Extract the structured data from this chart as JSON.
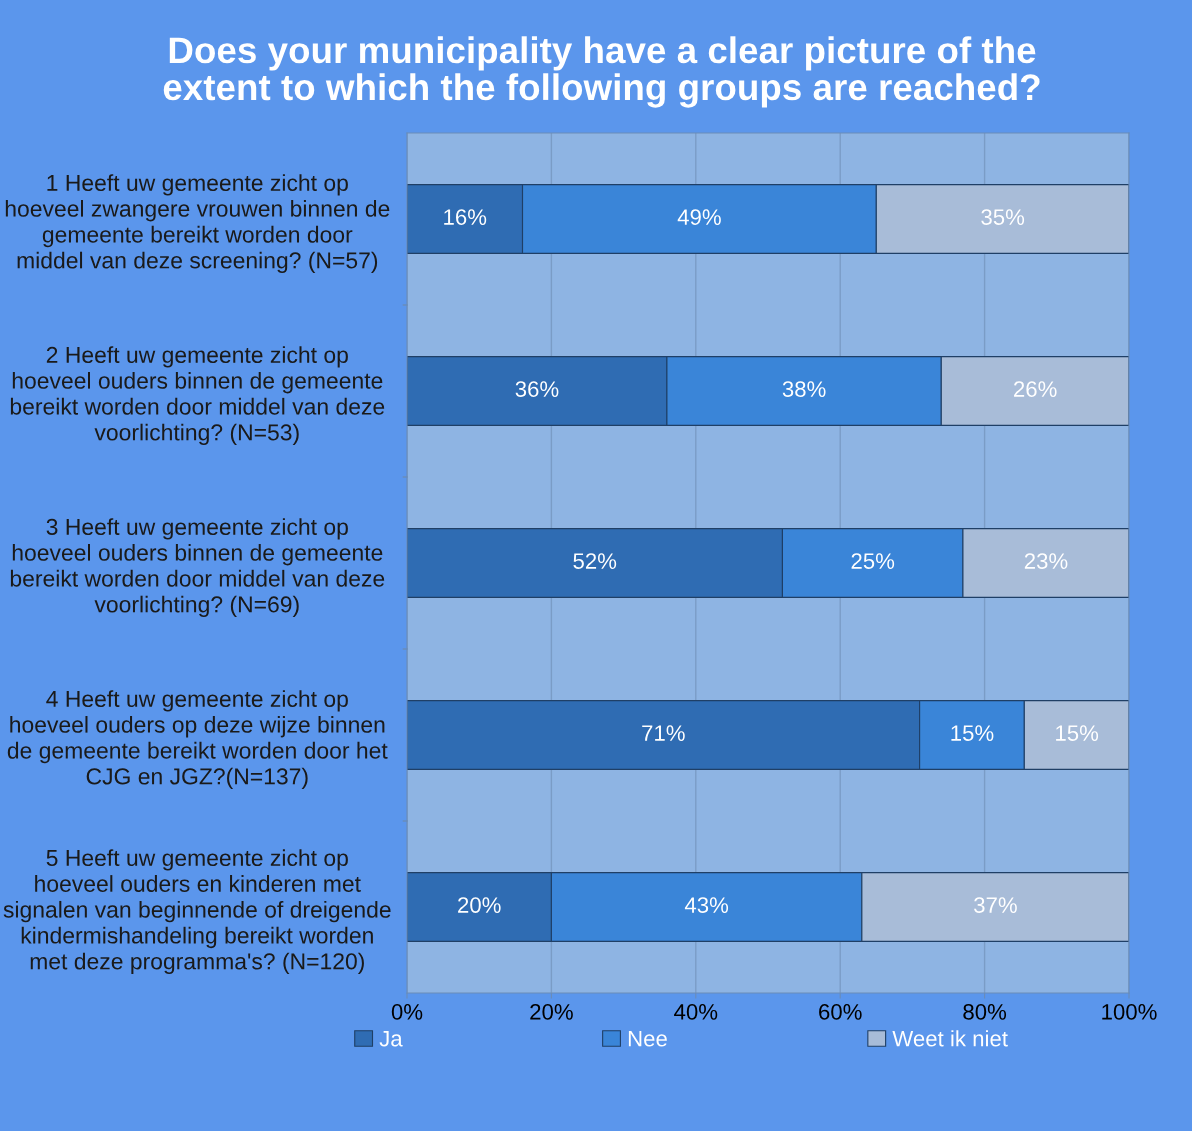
{
  "chart_data": {
    "type": "bar",
    "orientation": "horizontal",
    "stacked": true,
    "title": "Does your municipality have a clear picture of the\nextent to which the following groups are reached?",
    "categories": [
      "1 Heeft uw gemeente zicht op\nhoeveel zwangere vrouwen binnen de\ngemeente bereikt worden door\nmiddel van deze screening? (N=57)",
      "2 Heeft uw gemeente zicht op\nhoeveel ouders binnen de gemeente\nbereikt worden door middel van deze\nvoorlichting? (N=53)",
      "3 Heeft uw gemeente zicht op\nhoeveel ouders binnen de gemeente\nbereikt worden door middel van deze\nvoorlichting? (N=69)",
      "4 Heeft uw gemeente zicht op\nhoeveel ouders op deze wijze binnen\nde gemeente bereikt worden door het\nCJG en JGZ?(N=137)",
      "5 Heeft uw gemeente zicht op\nhoeveel ouders en kinderen met\nsignalen van beginnende of dreigende\nkindermishandeling bereikt worden\nmet deze programma's? (N=120)"
    ],
    "series": [
      {
        "name": "Ja",
        "color": "#2f6cb3",
        "values": [
          16,
          36,
          52,
          71,
          20
        ],
        "value_labels": [
          "16%",
          "36%",
          "52%",
          "71%",
          "20%"
        ]
      },
      {
        "name": "Nee",
        "color": "#3a85d8",
        "values": [
          49,
          38,
          25,
          14.5,
          43
        ],
        "value_labels": [
          "49%",
          "38%",
          "25%",
          "15%",
          "43%"
        ]
      },
      {
        "name": "Weet ik niet",
        "color": "#a8bcd8",
        "values": [
          35,
          26,
          23,
          14.5,
          37
        ],
        "value_labels": [
          "35%",
          "26%",
          "23%",
          "15%",
          "37%"
        ]
      }
    ],
    "xlim": [
      0,
      100
    ],
    "xticks": [
      {
        "value": 0,
        "label": "0%"
      },
      {
        "value": 20,
        "label": "20%"
      },
      {
        "value": 40,
        "label": "40%"
      },
      {
        "value": 60,
        "label": "60%"
      },
      {
        "value": 80,
        "label": "80%"
      },
      {
        "value": 100,
        "label": "100%"
      }
    ],
    "grid": "x",
    "legend": "bottom"
  }
}
